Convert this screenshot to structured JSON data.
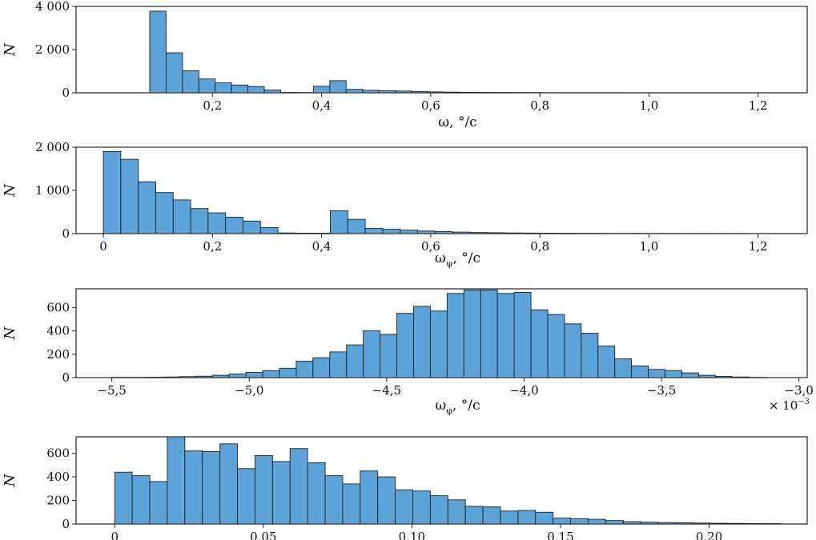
{
  "colors": {
    "bar_fill": "#5ba3d9",
    "bar_edge": "#1f1f1f",
    "axis": "#222222"
  },
  "chart_data": [
    {
      "type": "bar",
      "subtype": "histogram",
      "ylabel": "N",
      "xlabel_main": "ω, °/c",
      "xlabel_sub": "",
      "xlabel_tail": "",
      "xlim": [
        -0.05,
        1.29
      ],
      "ylim": [
        0,
        4000
      ],
      "xticks": [
        0.2,
        0.4,
        0.6,
        0.8,
        1.0,
        1.2
      ],
      "xticklabels": [
        "0,2",
        "0,4",
        "0,6",
        "0,8",
        "1,0",
        "1,2"
      ],
      "yticks": [
        0,
        2000,
        4000
      ],
      "yticklabels": [
        "0",
        "2 000",
        "4 000"
      ],
      "offset_text": "",
      "offset_exp": "",
      "bin_edges": [
        0.085,
        0.115,
        0.145,
        0.175,
        0.205,
        0.235,
        0.265,
        0.295,
        0.325,
        0.355,
        0.385,
        0.415,
        0.445,
        0.475,
        0.505,
        0.535,
        0.565,
        0.595,
        0.625,
        0.655,
        0.685,
        0.715,
        0.745,
        0.775,
        0.805,
        0.835,
        0.865,
        0.895,
        0.925,
        0.955,
        0.985,
        1.015,
        1.045,
        1.075,
        1.105,
        1.135,
        1.165,
        1.195,
        1.225
      ],
      "counts": [
        3780,
        1850,
        1020,
        640,
        460,
        360,
        290,
        130,
        15,
        10,
        300,
        560,
        160,
        120,
        100,
        80,
        60,
        40,
        30,
        20,
        15,
        12,
        10,
        8,
        6,
        5,
        5,
        4,
        4,
        3,
        3,
        3,
        2,
        2,
        2,
        2,
        2,
        1
      ]
    },
    {
      "type": "bar",
      "subtype": "histogram",
      "ylabel": "N",
      "xlabel_main": "ω",
      "xlabel_sub": "ψ",
      "xlabel_tail": ", °/c",
      "xlim": [
        -0.05,
        1.29
      ],
      "ylim": [
        0,
        2000
      ],
      "xticks": [
        0,
        0.2,
        0.4,
        0.6,
        0.8,
        1.0,
        1.2
      ],
      "xticklabels": [
        "0",
        "0,2",
        "0,4",
        "0,6",
        "0,8",
        "1,0",
        "1,2"
      ],
      "yticks": [
        0,
        1000,
        2000
      ],
      "yticklabels": [
        "0",
        "1 000",
        "2 000"
      ],
      "offset_text": "",
      "offset_exp": "",
      "bin_edges": [
        0.0,
        0.032,
        0.064,
        0.096,
        0.128,
        0.16,
        0.192,
        0.224,
        0.256,
        0.288,
        0.32,
        0.352,
        0.384,
        0.416,
        0.448,
        0.48,
        0.512,
        0.544,
        0.576,
        0.608,
        0.64,
        0.672,
        0.704,
        0.736,
        0.768,
        0.8,
        0.832,
        0.864,
        0.896,
        0.928,
        0.96,
        0.992,
        1.024,
        1.056,
        1.088,
        1.12,
        1.152,
        1.184,
        1.216
      ],
      "counts": [
        1900,
        1720,
        1200,
        950,
        780,
        580,
        480,
        380,
        290,
        140,
        15,
        10,
        10,
        530,
        330,
        120,
        100,
        80,
        60,
        45,
        35,
        25,
        20,
        15,
        12,
        10,
        8,
        6,
        5,
        4,
        4,
        3,
        3,
        2,
        2,
        2,
        2,
        1
      ]
    },
    {
      "type": "bar",
      "subtype": "histogram",
      "ylabel": "N",
      "xlabel_main": "ω",
      "xlabel_sub": "φ",
      "xlabel_tail": ", °/c",
      "xlim": [
        -5.63,
        -2.97
      ],
      "ylim": [
        0,
        760
      ],
      "xticks": [
        -5.5,
        -5.0,
        -4.5,
        -4.0,
        -3.5,
        -3.0
      ],
      "xticklabels": [
        "−5,5",
        "−5,0",
        "−4,5",
        "−4,0",
        "−3,5",
        "−3,0"
      ],
      "yticks": [
        0,
        200,
        400,
        600
      ],
      "yticklabels": [
        "0",
        "200",
        "400",
        "600"
      ],
      "offset_text": "× 10",
      "offset_exp": "−3",
      "bin_edges": [
        -5.5,
        -5.439,
        -5.378,
        -5.317,
        -5.256,
        -5.195,
        -5.134,
        -5.073,
        -5.012,
        -4.951,
        -4.89,
        -4.829,
        -4.768,
        -4.707,
        -4.646,
        -4.585,
        -4.524,
        -4.463,
        -4.402,
        -4.341,
        -4.28,
        -4.219,
        -4.158,
        -4.097,
        -4.036,
        -3.975,
        -3.914,
        -3.853,
        -3.792,
        -3.731,
        -3.67,
        -3.609,
        -3.548,
        -3.487,
        -3.426,
        -3.365,
        -3.304,
        -3.243,
        -3.182,
        -3.121
      ],
      "counts": [
        2,
        2,
        3,
        5,
        8,
        12,
        20,
        30,
        45,
        60,
        80,
        140,
        170,
        220,
        280,
        400,
        370,
        550,
        610,
        570,
        720,
        750,
        750,
        720,
        730,
        580,
        540,
        460,
        380,
        270,
        160,
        100,
        70,
        60,
        40,
        20,
        10,
        5,
        2
      ]
    },
    {
      "type": "bar",
      "subtype": "histogram",
      "ylabel": "N",
      "xlabel_main": "",
      "xlabel_sub": "",
      "xlabel_tail": "",
      "xlim": [
        -0.013,
        0.233
      ],
      "ylim": [
        0,
        740
      ],
      "xticks": [
        0,
        0.05,
        0.1,
        0.15,
        0.2
      ],
      "xticklabels": [
        "0",
        "0,05",
        "0,10",
        "0,15",
        "0,20"
      ],
      "yticks": [
        0,
        200,
        400,
        600
      ],
      "yticklabels": [
        "0",
        "200",
        "400",
        "600"
      ],
      "offset_text": "",
      "offset_exp": "",
      "bin_edges": [
        0.0,
        0.0059,
        0.0118,
        0.0177,
        0.0236,
        0.0295,
        0.0354,
        0.0413,
        0.0472,
        0.0531,
        0.059,
        0.0649,
        0.0708,
        0.0767,
        0.0826,
        0.0885,
        0.0944,
        0.1003,
        0.1062,
        0.1121,
        0.118,
        0.1239,
        0.1298,
        0.1357,
        0.1416,
        0.1475,
        0.1534,
        0.1593,
        0.1652,
        0.1711,
        0.177,
        0.1829,
        0.1888,
        0.1947,
        0.2006,
        0.2065,
        0.2124,
        0.2183,
        0.2242
      ],
      "counts": [
        440,
        410,
        360,
        740,
        620,
        615,
        680,
        470,
        580,
        530,
        640,
        520,
        410,
        340,
        450,
        400,
        290,
        280,
        240,
        205,
        150,
        145,
        110,
        115,
        100,
        50,
        45,
        40,
        30,
        20,
        15,
        12,
        10,
        8,
        6,
        5,
        4,
        3
      ]
    }
  ]
}
